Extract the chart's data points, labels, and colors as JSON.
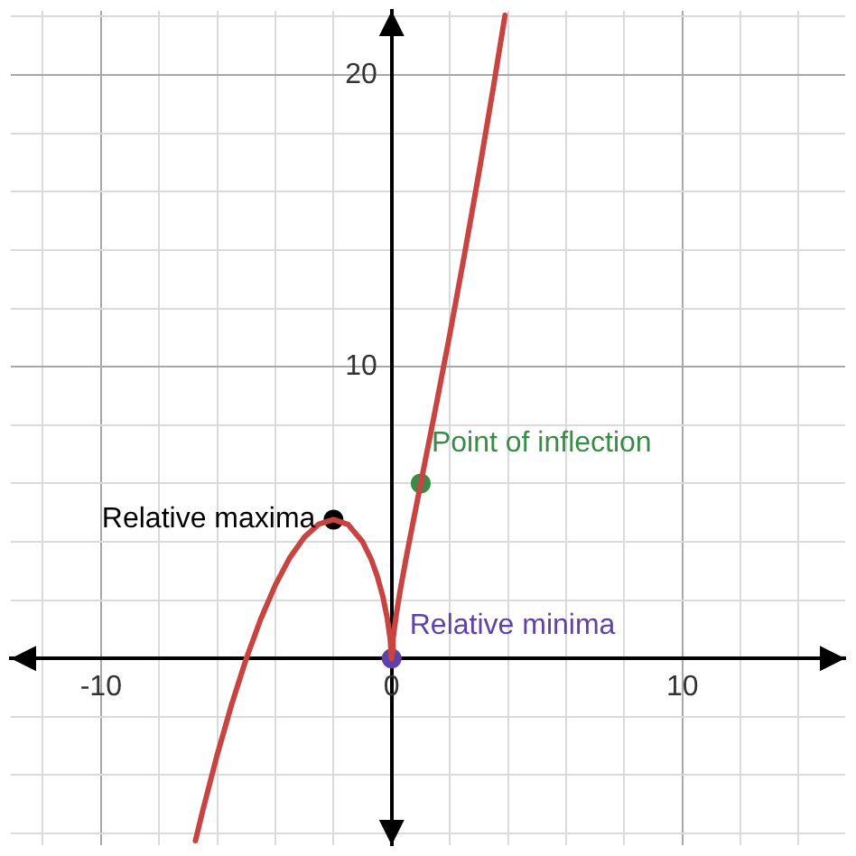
{
  "chart_data": {
    "type": "line",
    "xlim": [
      -13.1,
      15.6
    ],
    "ylim": [
      -6.4,
      22.2
    ],
    "xticks": [
      {
        "value": -12,
        "label": null
      },
      -10,
      {
        "value": -8,
        "label": null
      },
      {
        "value": -6,
        "label": null
      },
      {
        "value": -4,
        "label": null
      },
      {
        "value": -2,
        "label": null
      },
      0,
      {
        "value": 2,
        "label": null
      },
      {
        "value": 4,
        "label": null
      },
      {
        "value": 6,
        "label": null
      },
      {
        "value": 8,
        "label": null
      },
      10,
      {
        "value": 12,
        "label": null
      },
      {
        "value": 14,
        "label": null
      }
    ],
    "yticks": [
      {
        "value": -6,
        "label": null
      },
      {
        "value": -4,
        "label": null
      },
      {
        "value": -2,
        "label": null
      },
      {
        "value": 0,
        "label": null
      },
      {
        "value": 2,
        "label": null
      },
      {
        "value": 4,
        "label": null
      },
      {
        "value": 6,
        "label": null
      },
      {
        "value": 8,
        "label": null
      },
      10,
      {
        "value": 12,
        "label": null
      },
      {
        "value": 14,
        "label": null
      },
      {
        "value": 16,
        "label": null
      },
      {
        "value": 18,
        "label": null
      },
      20,
      {
        "value": 22,
        "label": null
      }
    ],
    "grid": true,
    "legend": false,
    "series": [
      {
        "color": "#c74440",
        "marker": "none",
        "x": [
          -6.75,
          -6.5,
          -6,
          -5.5,
          -5,
          -4.5,
          -4,
          -3.5,
          -3,
          -2.5,
          -2,
          -1.5,
          -1,
          -0.7,
          -0.5,
          -0.3,
          -0.15,
          -0.05,
          -0.01,
          0,
          0.01,
          0.05,
          0.15,
          0.3,
          0.5,
          0.75,
          1,
          1.5,
          2,
          2.5,
          3,
          3.5,
          3.9
        ],
        "values": [
          -6.25,
          -5.22,
          -3.3,
          -1.56,
          0,
          1.36,
          2.52,
          3.46,
          4.16,
          4.61,
          4.76,
          4.59,
          4,
          3.39,
          2.83,
          2.11,
          1.37,
          0.67,
          0.23,
          0,
          0.23,
          0.69,
          1.45,
          2.37,
          3.46,
          4.74,
          6,
          8.52,
          11.11,
          13.82,
          16.64,
          19.59,
          22.05
        ]
      },
      {
        "type": "scatter",
        "marker": "circle",
        "x": [
          -2,
          1,
          0
        ],
        "values": [
          4.76,
          6,
          0
        ],
        "colors": [
          "#000000",
          "#388c46",
          "#6042a6"
        ]
      }
    ],
    "annotations": [
      {
        "text": "Relative maxima",
        "x": -2,
        "y": 4.76
      },
      {
        "text": "Point of inflection",
        "x": 1,
        "y": 6
      },
      {
        "text": "Relative minima",
        "x": 0,
        "y": 0
      }
    ]
  }
}
